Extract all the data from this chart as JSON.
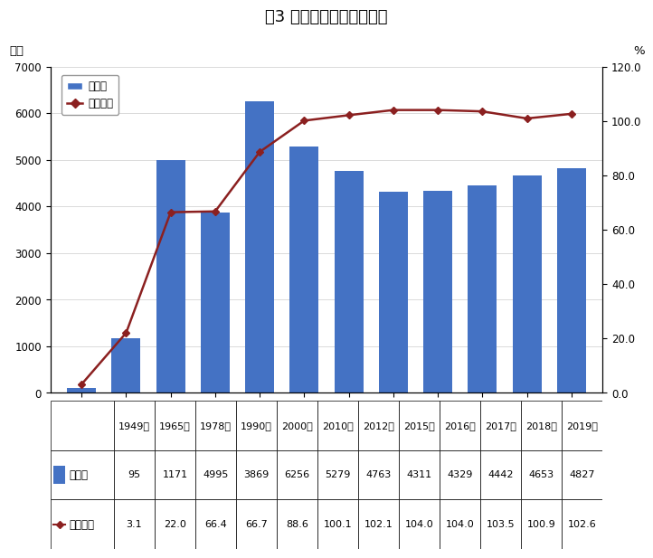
{
  "title": "图3 初中在校生和毛入学率",
  "years": [
    "1949年",
    "1965年",
    "1978年",
    "1990年",
    "2000年",
    "2010年",
    "2012年",
    "2015年",
    "2016年",
    "2017年",
    "2018年",
    "2019年"
  ],
  "enrollment": [
    95,
    1171,
    4995,
    3869,
    6256,
    5279,
    4763,
    4311,
    4329,
    4442,
    4653,
    4827
  ],
  "gross_rate": [
    3.1,
    22.0,
    66.4,
    66.7,
    88.6,
    100.1,
    102.1,
    104.0,
    104.0,
    103.5,
    100.9,
    102.6
  ],
  "bar_color": "#4472C4",
  "line_color": "#8B2020",
  "left_ylabel": "万人",
  "right_ylabel": "%",
  "left_ylim": [
    0,
    7000
  ],
  "right_ylim": [
    0,
    120.0
  ],
  "left_yticks": [
    0,
    1000,
    2000,
    3000,
    4000,
    5000,
    6000,
    7000
  ],
  "right_yticks": [
    0.0,
    20.0,
    40.0,
    60.0,
    80.0,
    100.0,
    120.0
  ],
  "legend_bar_label": "在校生",
  "legend_line_label": "毛入学率",
  "table_row1_label": "在校生",
  "table_row2_label": "毛入学率",
  "title_fontsize": 13,
  "tick_fontsize": 8.5,
  "label_fontsize": 9.5
}
